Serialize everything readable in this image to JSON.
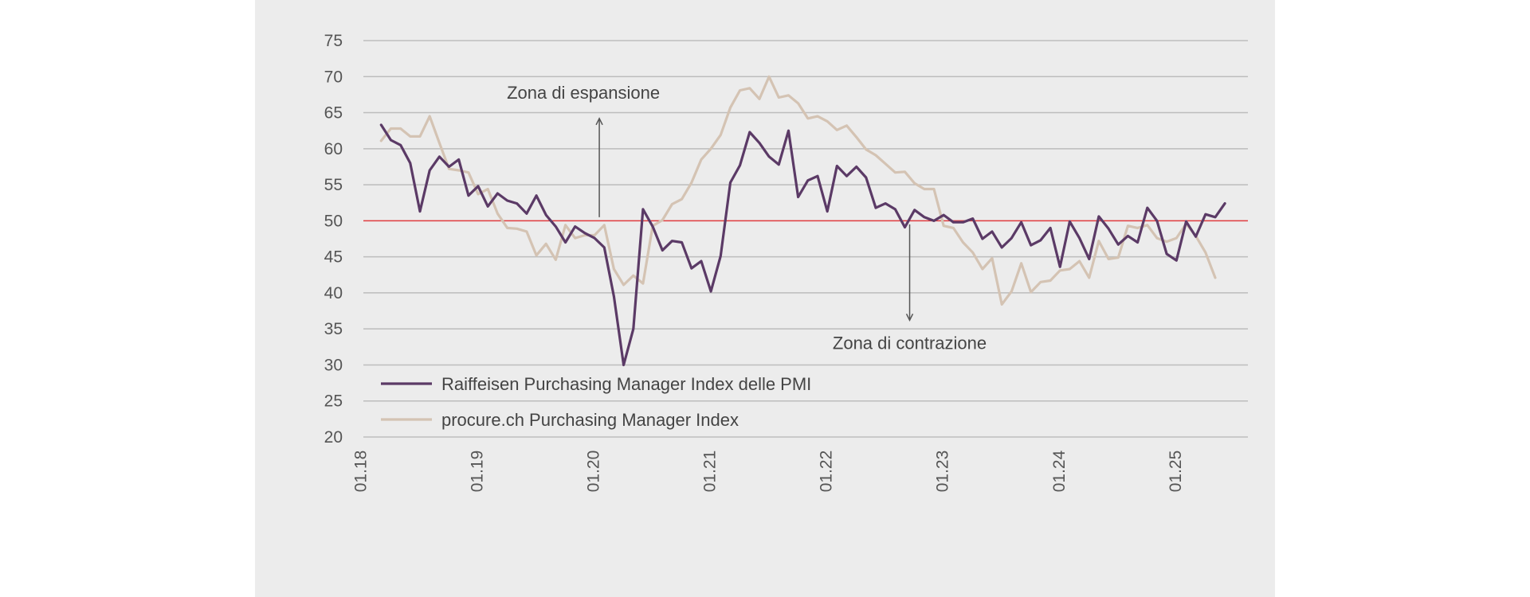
{
  "chart_data": {
    "type": "line",
    "title": "",
    "xlabel": "",
    "ylabel": "",
    "ylim": [
      20,
      75
    ],
    "yticks": [
      "75",
      "70",
      "65",
      "60",
      "55",
      "50",
      "45",
      "40",
      "35",
      "30",
      "25",
      "20"
    ],
    "xticks": [
      "01.18",
      "01.19",
      "01.20",
      "01.21",
      "01.22",
      "01.23",
      "01.24",
      "01.25"
    ],
    "x_start": "01.18",
    "x_interval": "month",
    "grid": true,
    "threshold": 50,
    "legend_position": "bottom-left",
    "colors": {
      "raiffeisen": "#5b3a66",
      "procure": "#d4c3b3",
      "threshold": "#e03a3e",
      "grid": "#bdbdbd",
      "panel": "#ececec"
    },
    "annotations": [
      {
        "text": "Zona di espansione",
        "arrow_from": 50.5,
        "arrow_to": 64.2,
        "x": "01.20"
      },
      {
        "text": "Zona di contrazione",
        "arrow_from": 49.5,
        "arrow_to": 36.2,
        "x": "09.22"
      }
    ],
    "series": [
      {
        "name": "Raiffeisen Purchasing Manager Index delle PMI",
        "start": "03.18",
        "values": [
          63.3,
          61.2,
          60.5,
          58.0,
          51.3,
          57.0,
          58.9,
          57.5,
          58.5,
          53.5,
          54.8,
          52.0,
          53.8,
          52.8,
          52.4,
          51.0,
          53.5,
          50.8,
          49.2,
          47.0,
          49.2,
          48.3,
          47.6,
          46.3,
          39.5,
          30.0,
          35.0,
          51.6,
          49.2,
          45.9,
          47.2,
          47.0,
          43.4,
          44.4,
          40.2,
          45.1,
          55.3,
          57.7,
          62.3,
          60.8,
          58.9,
          57.8,
          62.5,
          53.3,
          55.6,
          56.2,
          51.3,
          57.6,
          56.2,
          57.5,
          56.0,
          51.8,
          52.4,
          51.6,
          49.1,
          51.5,
          50.5,
          50.0,
          50.8,
          49.8,
          49.8,
          50.3,
          47.5,
          48.5,
          46.3,
          47.6,
          49.8,
          46.6,
          47.3,
          49.0,
          43.6,
          49.9,
          47.6,
          44.7,
          50.6,
          48.9,
          46.7,
          47.9,
          47.0,
          51.8,
          50.0,
          45.4,
          44.5,
          49.9,
          47.8,
          50.9,
          50.5,
          52.4
        ]
      },
      {
        "name": "procure.ch Purchasing Manager Index",
        "start": "03.18",
        "values": [
          61.1,
          62.8,
          62.8,
          61.7,
          61.7,
          64.5,
          60.8,
          57.2,
          57.0,
          56.7,
          53.7,
          54.4,
          51.0,
          49.0,
          48.9,
          48.5,
          45.2,
          46.8,
          44.6,
          49.4,
          47.6,
          48.0,
          48.0,
          49.4,
          43.3,
          41.1,
          42.4,
          41.3,
          49.3,
          50.1,
          52.3,
          53.0,
          55.3,
          58.5,
          60.0,
          61.9,
          65.7,
          68.1,
          68.4,
          66.9,
          70.0,
          67.1,
          67.4,
          66.3,
          64.2,
          64.5,
          63.8,
          62.6,
          63.2,
          61.6,
          59.9,
          59.1,
          57.9,
          56.7,
          56.8,
          55.2,
          54.4,
          54.4,
          49.3,
          49.0,
          47.0,
          45.6,
          43.3,
          44.8,
          38.4,
          40.2,
          44.1,
          40.1,
          41.5,
          41.7,
          43.1,
          43.3,
          44.4,
          42.1,
          47.2,
          44.7,
          44.9,
          49.3,
          49.0,
          49.4,
          47.6,
          47.1,
          47.6,
          49.6,
          47.9,
          45.6,
          42.1
        ]
      }
    ]
  }
}
